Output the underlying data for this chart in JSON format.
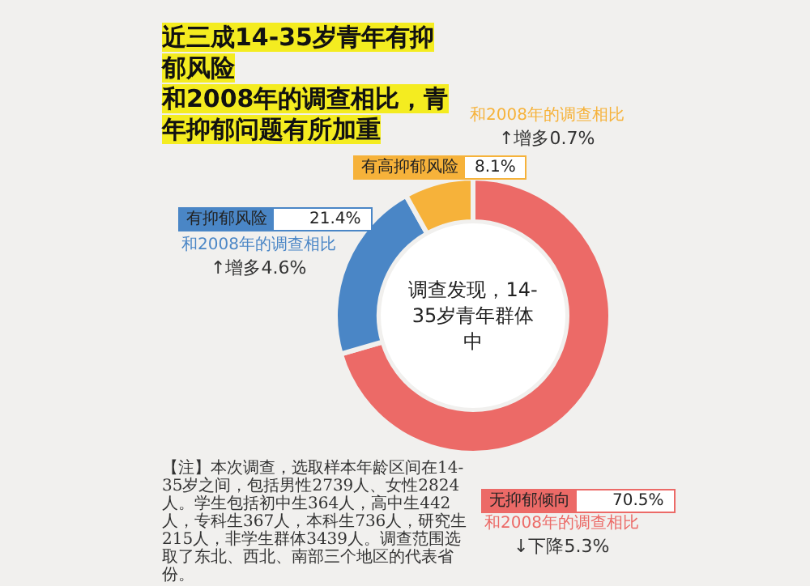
{
  "chart_data": {
    "type": "donut",
    "title": "近三成14-35岁青年有抑郁风险",
    "subtitle": "和2008年的调查相比，青年抑郁问题有所加重",
    "categories": [
      "无抑郁倾向",
      "有抑郁风险",
      "有高抑郁风险"
    ],
    "values": [
      70.5,
      21.4,
      8.1
    ],
    "colors": [
      "#ec6a67",
      "#4a86c6",
      "#f6b23a"
    ],
    "value_labels": [
      "70.5%",
      "21.4%",
      "8.1%"
    ],
    "annotations": [
      "和2008年的调查相比",
      "↓下降5.3%",
      "和2008年的调查相比",
      "↑增多4.6%",
      "和2008年的调查相比",
      "↑增多0.7%",
      "调查发现，14-35岁青年群体中",
      "【注】本次调查，选取样本年龄区间在14-35岁之间，包括男性2739人、女性2824人。学生包括初中生364人，高中生442人，专科生367人，本科生736人，研究生215人，非学生群体3439人。调查范围选取了东北、西北、南部三个地区的代表省份。"
    ]
  }
}
